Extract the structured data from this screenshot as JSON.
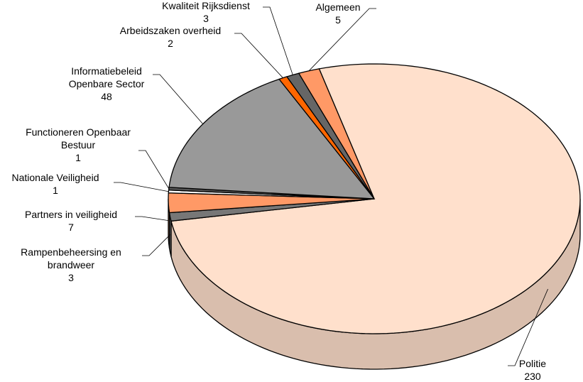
{
  "chart_data": {
    "type": "pie",
    "categories": [
      "Algemeen",
      "Politie",
      "Rampenbeheersing en brandweer",
      "Partners in veiligheid",
      "Nationale Veiligheid",
      "Functioneren Openbaar Bestuur",
      "Informatiebeleid Openbare Sector",
      "Arbeidszaken overheid",
      "Kwaliteit Rijksdienst"
    ],
    "values": [
      5,
      230,
      3,
      7,
      1,
      1,
      48,
      2,
      3
    ],
    "colors": [
      "#ff9966",
      "#ffe0cc",
      "#777777",
      "#ff9966",
      "#ffffff",
      "#555555",
      "#999999",
      "#ff6600",
      "#666666"
    ]
  }
}
